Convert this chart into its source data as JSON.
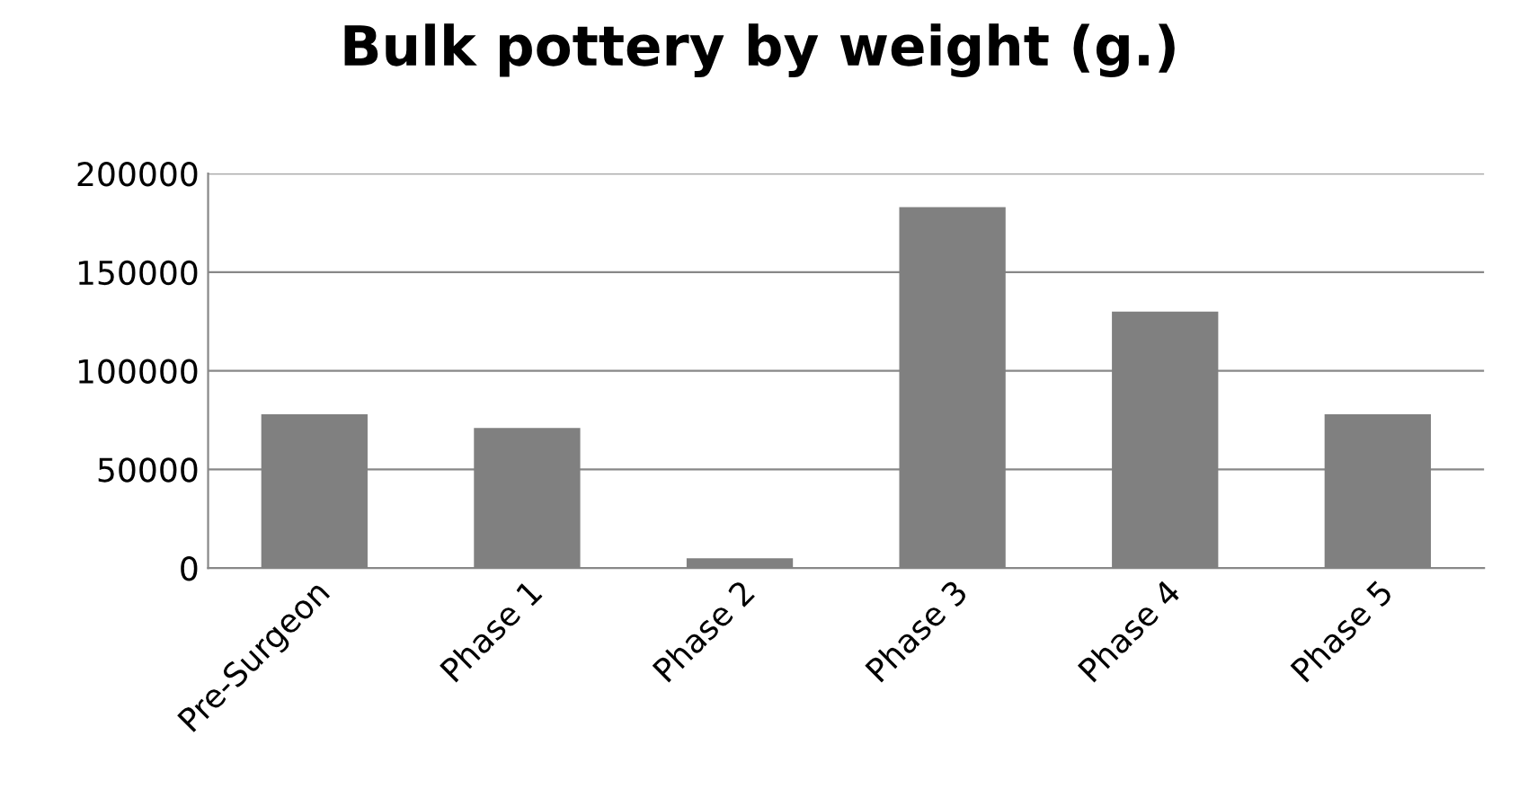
{
  "chart_data": {
    "type": "bar",
    "title": "Bulk pottery by weight (g.)",
    "categories": [
      "Pre-Surgeon",
      "Phase 1",
      "Phase 2",
      "Phase 3",
      "Phase 4",
      "Phase 5"
    ],
    "values": [
      78000,
      71000,
      5000,
      183000,
      130000,
      78000
    ],
    "color": "#808080",
    "ylim": [
      0,
      200000
    ],
    "yticks": [
      0,
      50000,
      100000,
      150000,
      200000
    ],
    "grid": "y"
  }
}
